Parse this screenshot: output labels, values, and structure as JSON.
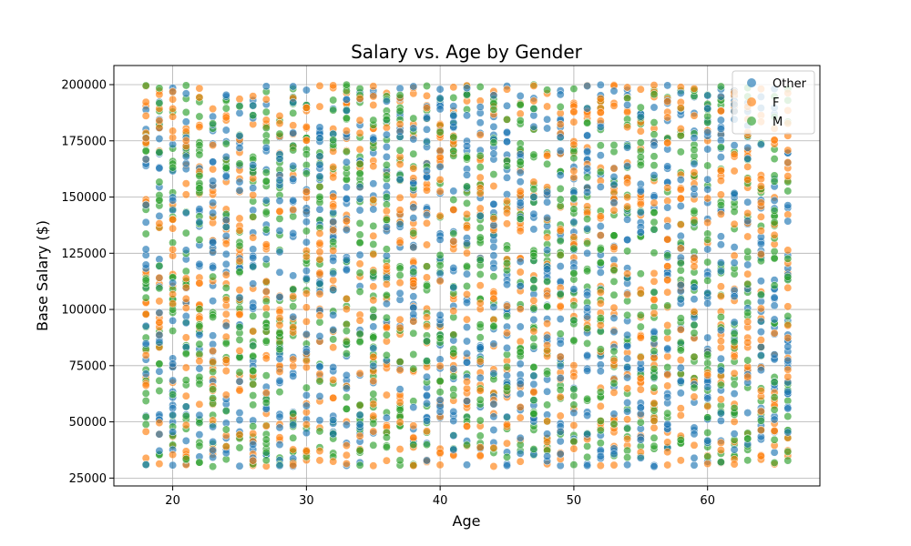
{
  "chart_data": {
    "type": "scatter",
    "title": "Salary vs. Age by Gender",
    "xlabel": "Age",
    "ylabel": "Base Salary ($)",
    "xlim": [
      15.6,
      68.4
    ],
    "ylim": [
      21500,
      208500
    ],
    "x_ticks": [
      20,
      30,
      40,
      50,
      60
    ],
    "y_ticks": [
      25000,
      50000,
      75000,
      100000,
      125000,
      150000,
      175000,
      200000
    ],
    "grid": true,
    "legend_position": "top-right",
    "age_range": [
      18,
      66
    ],
    "salary_range": [
      30000,
      200000
    ],
    "series": [
      {
        "name": "Other",
        "color": "#1f77b4"
      },
      {
        "name": "F",
        "color": "#ff7f0e"
      },
      {
        "name": "M",
        "color": "#2ca02c"
      }
    ]
  }
}
